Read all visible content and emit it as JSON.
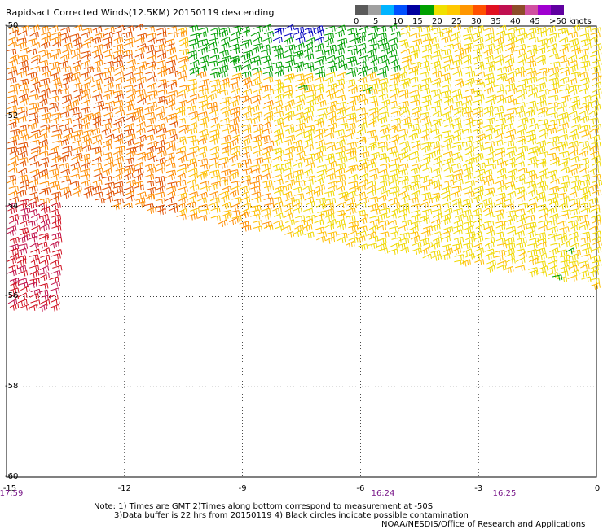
{
  "title": "Rapidsact Corrected Winds(12.5KM) 20150119 descending",
  "legend": {
    "colors": [
      "#5a5a5a",
      "#a0a0a0",
      "#00b4ff",
      "#0050ff",
      "#0000a0",
      "#00a000",
      "#f0e000",
      "#ffc800",
      "#ff9600",
      "#ff5000",
      "#e01020",
      "#c01050",
      "#8c4c28",
      "#d050a0",
      "#a000d0",
      "#6000a0"
    ],
    "labels": [
      {
        "text": "0",
        "value": 0
      },
      {
        "text": "5",
        "value": 5
      },
      {
        "text": "10",
        "value": 10
      },
      {
        "text": "15",
        "value": 15
      },
      {
        "text": "20",
        "value": 20
      },
      {
        "text": "25",
        "value": 25
      },
      {
        "text": "30",
        "value": 30
      },
      {
        "text": "35",
        "value": 35
      },
      {
        "text": "40",
        "value": 40
      },
      {
        "text": "45",
        "value": 45
      },
      {
        "text": ">50 knots",
        "value": 50
      }
    ]
  },
  "map": {
    "lat_range": [
      -60,
      -50
    ],
    "lon_range": [
      -15,
      0
    ],
    "lat_labels": [
      "-50",
      "-52",
      "-54",
      "-56",
      "-58",
      "-60"
    ],
    "lon_labels": [
      "-15",
      "-12",
      "-9",
      "-6",
      "-3",
      "0"
    ],
    "grid": "dotted",
    "barb_colors": {
      "yellow": "#f0d800",
      "gold": "#ffbe00",
      "orange": "#ff8c00",
      "red_orange": "#e05000",
      "red": "#d01020",
      "crimson": "#c0104a",
      "green": "#00a000",
      "blue": "#0000c0"
    }
  },
  "times": [
    {
      "text": "17:59"
    },
    {
      "text": "16:24"
    },
    {
      "text": "16:25"
    }
  ],
  "notes": {
    "line1": "Note: 1) Times are GMT 2)Times along bottom correspond to measurement at -50S",
    "line2": "3)Data buffer is 22 hrs from 20150119 4) Black circles indicate possible contamination",
    "credit": "NOAA/NESDIS/Office of Research and Applications"
  }
}
